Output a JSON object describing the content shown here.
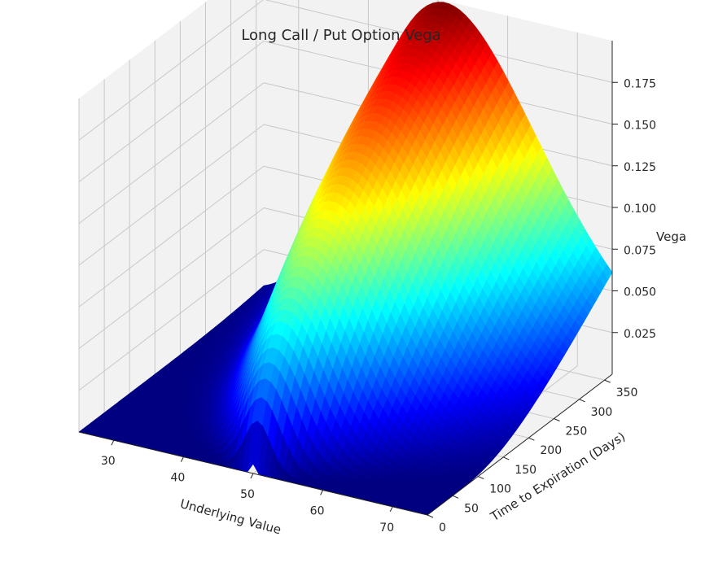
{
  "chart_data": {
    "type": "surface3d",
    "title": "Long Call / Put Option Vega",
    "xlabel": "Underlying Value",
    "ylabel": "Time to Expiration (Days)",
    "zlabel": "Vega",
    "x_ticks": [
      30,
      40,
      50,
      60,
      70
    ],
    "y_ticks": [
      0,
      50,
      100,
      150,
      200,
      250,
      300,
      350
    ],
    "z_ticks": [
      0.025,
      0.05,
      0.075,
      0.1,
      0.125,
      0.15,
      0.175
    ],
    "x_tick_labels": [
      "30",
      "40",
      "50",
      "60",
      "70"
    ],
    "y_tick_labels": [
      "0",
      "50",
      "100",
      "150",
      "200",
      "250",
      "300",
      "350"
    ],
    "z_tick_labels": [
      "0.025",
      "0.050",
      "0.075",
      "0.100",
      "0.125",
      "0.150",
      "0.175"
    ],
    "xlim": [
      25,
      75
    ],
    "ylim": [
      0,
      365
    ],
    "zlim": [
      0,
      0.2
    ],
    "strike": 50,
    "peak_vega": 0.199,
    "colormap": "jet",
    "grid": true,
    "pane_color": "#f2f2f2",
    "grid_color": "#c8c8c8"
  }
}
